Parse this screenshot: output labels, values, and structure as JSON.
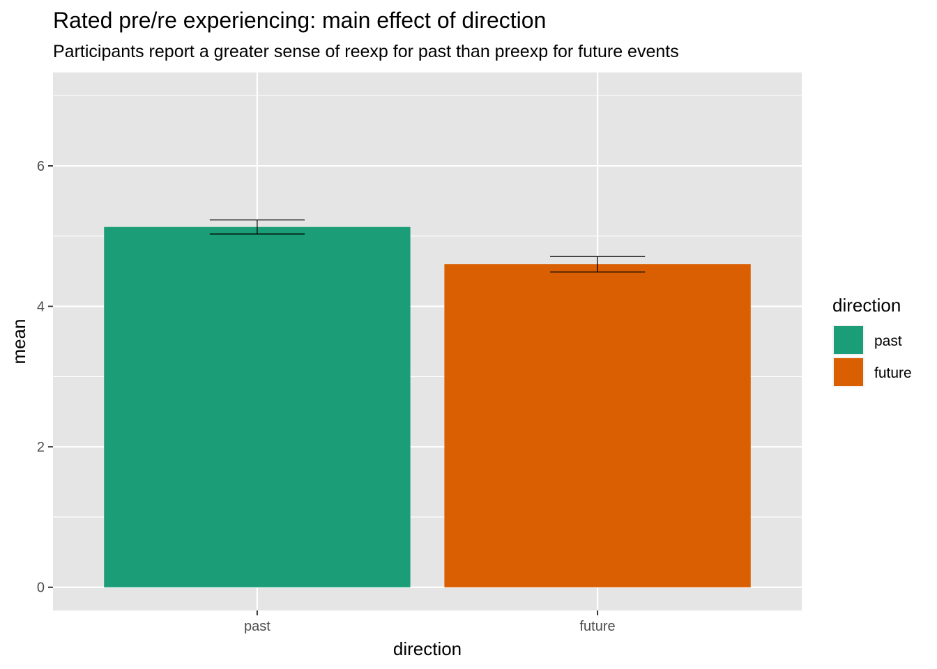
{
  "chart_data": {
    "type": "bar",
    "title": "Rated pre/re experiencing: main effect of direction",
    "subtitle": "Participants report a greater sense of reexp for past than preexp for future events",
    "xlabel": "direction",
    "ylabel": "mean",
    "categories": [
      "past",
      "future"
    ],
    "values": [
      5.13,
      4.6
    ],
    "error_bars": [
      {
        "low": 5.03,
        "high": 5.23
      },
      {
        "low": 4.49,
        "high": 4.71
      }
    ],
    "colors": [
      "#1b9e77",
      "#d95f02"
    ],
    "ylim": [
      -0.33,
      7.33
    ],
    "yticks": [
      0,
      2,
      4,
      6
    ],
    "grid": true,
    "legend": {
      "title": "direction",
      "position": "right",
      "entries": [
        "past",
        "future"
      ]
    }
  }
}
